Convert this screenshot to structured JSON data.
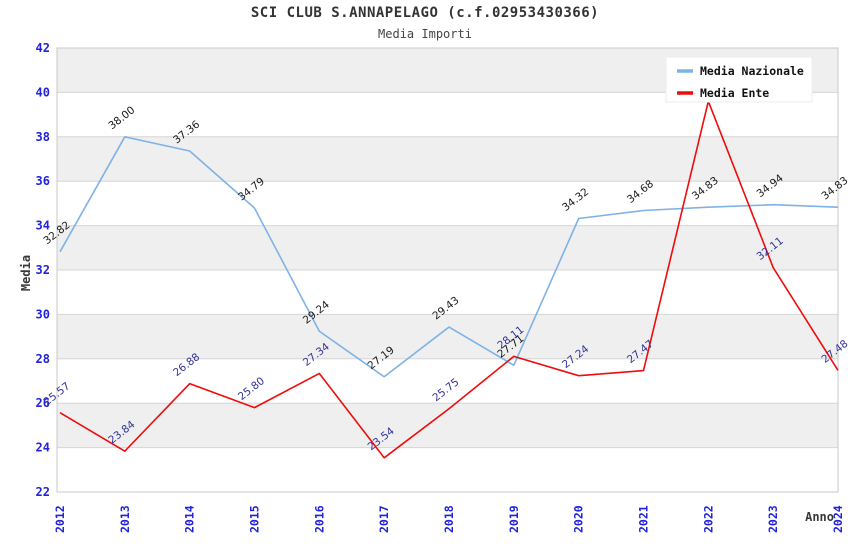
{
  "header": {
    "title": "SCI CLUB S.ANNAPELAGO (c.f.02953430366)",
    "subtitle": "Media Importi"
  },
  "chart_data": {
    "type": "line",
    "title": "SCI CLUB S.ANNAPELAGO (c.f.02953430366)",
    "subtitle": "Media Importi",
    "xlabel": "Anno",
    "ylabel": "Media",
    "x": [
      2012,
      2013,
      2014,
      2015,
      2016,
      2017,
      2018,
      2019,
      2020,
      2021,
      2022,
      2023,
      2024
    ],
    "ylim": [
      22,
      42
    ],
    "ytick_step": 2,
    "grid": "horizontal-bands",
    "gray_bands": [
      [
        24,
        26
      ],
      [
        28,
        30
      ],
      [
        32,
        34
      ],
      [
        36,
        38
      ],
      [
        40,
        42
      ]
    ],
    "legend_position": "top-right",
    "legend": [
      "Media Nazionale",
      "Media Ente"
    ],
    "series": [
      {
        "name": "Media Nazionale",
        "color": "#7fb2e5",
        "label_color": "#1a1a1a",
        "values": [
          32.82,
          38.0,
          37.36,
          34.79,
          29.24,
          27.19,
          29.43,
          27.71,
          34.32,
          34.68,
          34.83,
          34.94,
          34.83
        ],
        "labels": [
          "32.82",
          "38.00",
          "37.36",
          "34.79",
          "29.24",
          "27.19",
          "29.43",
          "27.71",
          "34.32",
          "34.68",
          "34.83",
          "34.94",
          "34.83"
        ]
      },
      {
        "name": "Media Ente",
        "color": "#ee0c0c",
        "label_color": "#333399",
        "values": [
          25.57,
          23.84,
          26.88,
          25.8,
          27.34,
          23.54,
          25.75,
          28.11,
          27.24,
          27.47,
          39.6,
          32.11,
          27.48
        ],
        "labels": [
          "25.57",
          "23.84",
          "26.88",
          "25.80",
          "27.34",
          "23.54",
          "25.75",
          "28.11",
          "27.24",
          "27.47",
          null,
          "32.11",
          "27.48"
        ]
      }
    ]
  },
  "colors": {
    "tick_label": "#2222dd",
    "axis_title": "#3a3a3a",
    "band_fill": "#efefef",
    "gridline": "#d6d6d6",
    "plot_border": "#c8c8c8",
    "legend_bg": "#ffffff",
    "legend_border": "#ececec",
    "legend_text": "#111111"
  }
}
